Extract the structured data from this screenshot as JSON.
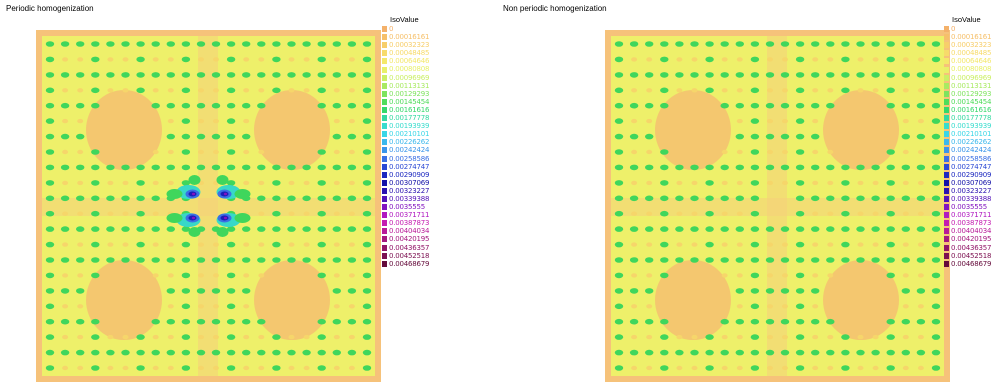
{
  "panels": [
    {
      "id": "left",
      "title": "Periodic homogenization",
      "legend_title": "IsoValue",
      "defect": true
    },
    {
      "id": "right",
      "title": "Non periodic homogenization",
      "legend_title": "IsoValue",
      "defect": false
    }
  ],
  "legend": [
    {
      "label": "0",
      "color": "#f4b16a"
    },
    {
      "label": "0.00016161",
      "color": "#f6c06a"
    },
    {
      "label": "0.00032323",
      "color": "#f7ce6a"
    },
    {
      "label": "0.00048485",
      "color": "#f7db6a"
    },
    {
      "label": "0.00064646",
      "color": "#f4e86a"
    },
    {
      "label": "0.00080808",
      "color": "#e8f06a"
    },
    {
      "label": "0.00096969",
      "color": "#cbef66"
    },
    {
      "label": "0.00113131",
      "color": "#a8ea62"
    },
    {
      "label": "0.00129293",
      "color": "#7ee35e"
    },
    {
      "label": "0.00145454",
      "color": "#4fdc5a"
    },
    {
      "label": "0.00161616",
      "color": "#35d86a"
    },
    {
      "label": "0.00177778",
      "color": "#34d9a0"
    },
    {
      "label": "0.00193939",
      "color": "#38dccd"
    },
    {
      "label": "0.00210101",
      "color": "#3ad6e6"
    },
    {
      "label": "0.00226262",
      "color": "#3ab8ec"
    },
    {
      "label": "0.00242424",
      "color": "#3a95ea"
    },
    {
      "label": "0.00258586",
      "color": "#3a6fe4"
    },
    {
      "label": "0.00274747",
      "color": "#2a48d4"
    },
    {
      "label": "0.00290909",
      "color": "#1c28c0"
    },
    {
      "label": "0.00307069",
      "color": "#1412a8"
    },
    {
      "label": "0.00323227",
      "color": "#2a12b0"
    },
    {
      "label": "0.00339388",
      "color": "#5212b8"
    },
    {
      "label": "0.0035555",
      "color": "#8214c0"
    },
    {
      "label": "0.00371711",
      "color": "#b018c0"
    },
    {
      "label": "0.00387873",
      "color": "#c41cb0"
    },
    {
      "label": "0.00404034",
      "color": "#b81a98"
    },
    {
      "label": "0.00420195",
      "color": "#a4187e"
    },
    {
      "label": "0.00436357",
      "color": "#901466"
    },
    {
      "label": "0.00452518",
      "color": "#7c1050"
    },
    {
      "label": "0.00468679",
      "color": "#640a3a"
    }
  ],
  "chart_data": [
    {
      "type": "heatmap",
      "title": "Periodic homogenization",
      "colorbar_title": "IsoValue",
      "colorbar_range": [
        0,
        0.00468679
      ],
      "description_values": "periodic fringe pattern with peak values near the center defect"
    },
    {
      "type": "heatmap",
      "title": "Non periodic homogenization",
      "colorbar_title": "IsoValue",
      "colorbar_range": [
        0,
        0.00468679
      ]
    }
  ]
}
